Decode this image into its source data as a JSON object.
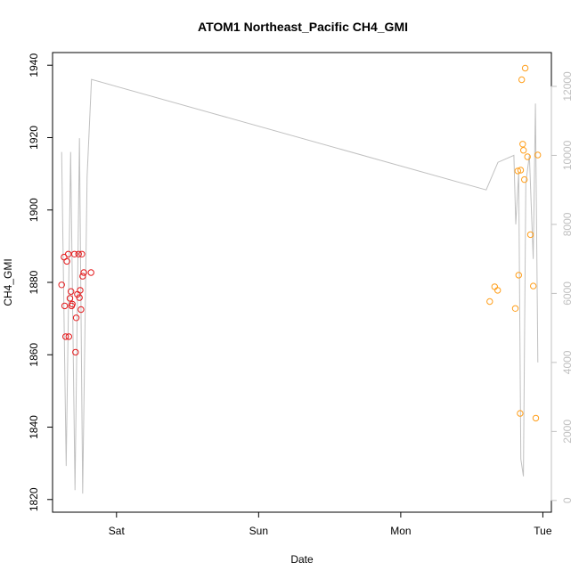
{
  "chart_data": {
    "type": "scatter",
    "title": "ATOM1 Northeast_Pacific CH4_GMI",
    "xlabel": "Date",
    "ylabel": "CH4_GMI",
    "x_ticks": [
      "Sat",
      "Sun",
      "Mon",
      "Tue"
    ],
    "x_tick_values": [
      1,
      2,
      3,
      4
    ],
    "xlim": [
      0.55,
      4.06
    ],
    "ylim": [
      1816.5,
      1943.5
    ],
    "y_ticks": [
      1820,
      1840,
      1860,
      1880,
      1900,
      1920,
      1940
    ],
    "y2lim": [
      -340,
      12980
    ],
    "y2_ticks": [
      0,
      2000,
      4000,
      6000,
      8000,
      10000,
      12000
    ],
    "grid": false,
    "colors": {
      "series_red": "#e41a1c",
      "series_orange": "#ff9f1c",
      "altitude_line": "#c0c0c0"
    },
    "series": [
      {
        "color": "#e41a1c",
        "x": [
          0.614,
          0.631,
          0.635,
          0.642,
          0.651,
          0.661,
          0.665,
          0.672,
          0.68,
          0.684,
          0.689,
          0.704,
          0.712,
          0.717,
          0.725,
          0.733,
          0.739,
          0.744,
          0.75,
          0.756,
          0.762,
          0.77,
          0.821
        ],
        "y": [
          1879.3,
          1887.0,
          1873.5,
          1865.0,
          1885.8,
          1887.8,
          1865.0,
          1875.6,
          1877.5,
          1873.5,
          1874.0,
          1887.8,
          1860.7,
          1870.2,
          1876.7,
          1887.8,
          1875.8,
          1877.8,
          1872.5,
          1887.8,
          1881.7,
          1882.7,
          1882.7
        ]
      },
      {
        "color": "#ff9f1c",
        "x": [
          3.626,
          3.661,
          3.682,
          3.806,
          3.824,
          3.83,
          3.84,
          3.844,
          3.851,
          3.858,
          3.864,
          3.87,
          3.876,
          3.892,
          3.913,
          3.933,
          3.95,
          3.964
        ],
        "y": [
          1874.7,
          1878.8,
          1877.8,
          1872.8,
          1910.8,
          1882.0,
          1843.8,
          1911.0,
          1936.0,
          1918.2,
          1916.5,
          1908.4,
          1939.2,
          1914.7,
          1893.2,
          1879.0,
          1842.5,
          1915.2
        ]
      }
    ],
    "altitude_line": {
      "x": [
        0.614,
        0.646,
        0.677,
        0.708,
        0.739,
        0.762,
        0.793,
        0.824,
        3.601,
        3.684,
        3.796,
        3.809,
        3.83,
        3.845,
        3.863,
        3.88,
        3.905,
        3.932,
        3.948,
        3.965
      ],
      "y2": [
        10100,
        1000,
        10100,
        300,
        10500,
        200,
        9400,
        12200,
        9000,
        9800,
        10000,
        8000,
        9500,
        1200,
        700,
        9200,
        10000,
        7000,
        11500,
        4000
      ]
    }
  }
}
